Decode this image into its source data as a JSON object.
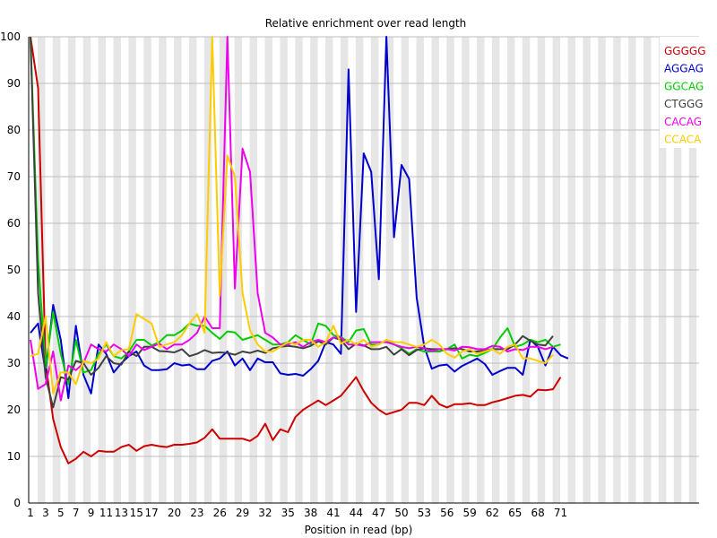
{
  "chart_data": {
    "type": "line",
    "title": "Relative enrichment over read length",
    "xlabel": "Position in read (bp)",
    "ylabel": "",
    "ylim": [
      0,
      100
    ],
    "yticks": [
      0,
      10,
      20,
      30,
      40,
      50,
      60,
      70,
      80,
      90,
      100
    ],
    "xticks": [
      1,
      3,
      5,
      7,
      9,
      11,
      13,
      15,
      17,
      20,
      23,
      26,
      29,
      32,
      35,
      38,
      41,
      44,
      47,
      50,
      53,
      56,
      59,
      62,
      65,
      68,
      71
    ],
    "grid": "horizontal",
    "legend_position": "top-right",
    "series": [
      {
        "name": "GGGGG",
        "color": "#cc0000",
        "values": [
          100,
          89,
          30,
          18,
          12,
          8.5,
          9.5,
          11,
          10,
          11.2,
          11,
          11,
          12,
          12.5,
          11.2,
          12.2,
          12.5,
          12.2,
          12,
          12.5,
          12.5,
          12.7,
          13,
          14,
          15.8,
          13.8,
          13.8,
          13.8,
          13.8,
          13.3,
          14.4,
          17,
          13.5,
          15.8,
          15.2,
          18.5,
          20,
          21,
          22,
          21,
          22,
          23,
          25,
          27,
          24,
          21.5,
          20,
          19,
          19.5,
          20,
          21.5,
          21.5,
          21,
          23,
          21.2,
          20.5,
          21.2,
          21.2,
          21.4,
          21,
          21,
          21.6,
          22,
          22.5,
          23,
          23.2,
          22.8,
          24.3,
          24.2,
          24.4,
          27
        ]
      },
      {
        "name": "AGGAG",
        "color": "#0000cc",
        "values": [
          36.5,
          38.5,
          28,
          42.5,
          35,
          22.5,
          38,
          27.5,
          23.5,
          34,
          32,
          28,
          30,
          31.5,
          32.5,
          29.5,
          28.5,
          28.5,
          28.7,
          30,
          29.5,
          29.7,
          28.7,
          28.7,
          30.5,
          31,
          32.5,
          29.5,
          31,
          28.5,
          31,
          30.2,
          30.2,
          27.8,
          27.5,
          27.7,
          27.3,
          28.7,
          30.5,
          34.5,
          34,
          32,
          93,
          41,
          75,
          71,
          48,
          100,
          57,
          72.5,
          69.5,
          44,
          33.5,
          28.8,
          29.5,
          29.7,
          28.2,
          29.4,
          30.2,
          31,
          29.8,
          27.5,
          28.3,
          29,
          29,
          27.5,
          35,
          33.5,
          29.5,
          33.5,
          31.7,
          31
        ]
      },
      {
        "name": "GGCAG",
        "color": "#00cc00",
        "values": [
          100,
          52,
          29,
          41,
          32,
          25.5,
          35,
          28,
          28.5,
          32,
          34,
          31.5,
          31,
          32.5,
          35,
          35,
          33.8,
          34.5,
          36,
          36,
          37,
          38.5,
          38,
          38,
          36.5,
          35.2,
          36.8,
          36.6,
          35,
          35.5,
          36,
          35,
          34,
          34,
          34.5,
          36,
          35,
          34,
          38.5,
          38,
          36,
          35.6,
          34.5,
          37,
          37.3,
          34,
          34,
          35,
          34,
          33.2,
          32,
          33,
          32.5,
          32.5,
          32.5,
          33,
          34,
          31,
          31.8,
          31.5,
          32.2,
          33,
          35.5,
          37.5,
          33.5,
          34,
          35,
          34.5,
          35,
          33.5,
          34
        ]
      },
      {
        "name": "CTGGG",
        "color": "#404040",
        "values": [
          100,
          45,
          27,
          20.5,
          27,
          26.5,
          30.5,
          30,
          27.5,
          29,
          31.5,
          30,
          29.7,
          32.5,
          31.5,
          33.5,
          33.5,
          32.6,
          32.5,
          32.3,
          33,
          31.5,
          32,
          32.8,
          32.2,
          32.3,
          32.2,
          31.8,
          32.5,
          32.2,
          32.7,
          32.2,
          33.2,
          33.5,
          33.7,
          33.5,
          33.2,
          33.7,
          34.7,
          34,
          35.5,
          35,
          33,
          34.2,
          33.8,
          33,
          33,
          33.5,
          31.8,
          33,
          31.7,
          32.8,
          33.2,
          33,
          33,
          33,
          33.2,
          33,
          32.5,
          32.5,
          32.7,
          33,
          33,
          33,
          34,
          35.8,
          34.8,
          34,
          33.8,
          35.8
        ]
      },
      {
        "name": "CACAG",
        "color": "#ee00ee",
        "values": [
          35,
          24.5,
          25.5,
          32.5,
          22,
          29.5,
          28.5,
          30,
          34,
          33,
          32.5,
          34,
          33,
          31.5,
          34,
          32.8,
          33.5,
          34.2,
          33,
          34,
          34,
          35,
          36.5,
          40,
          37.5,
          37.5,
          100,
          46,
          76,
          71,
          45,
          36.5,
          35.5,
          34,
          34,
          34.5,
          33.5,
          34.5,
          35,
          34.5,
          35.5,
          35.5,
          34,
          34,
          33.7,
          34.5,
          34.5,
          34.5,
          34,
          33.5,
          33.2,
          33.5,
          33.2,
          32.6,
          33,
          33,
          32.7,
          33.5,
          33.4,
          33,
          33,
          33.7,
          33.5,
          32.5,
          33,
          32.8,
          33.5,
          33.5,
          33,
          33.5
        ]
      },
      {
        "name": "CCACA",
        "color": "#ffcc00",
        "values": [
          31.5,
          32,
          40,
          23.5,
          28,
          28,
          25.5,
          30.5,
          30,
          31,
          34.5,
          31.5,
          32.8,
          33,
          40.5,
          39.5,
          38.5,
          33.5,
          34,
          34.5,
          36,
          38.5,
          40.5,
          36.5,
          100,
          44.5,
          74.5,
          70,
          45,
          37,
          34,
          32.5,
          32.5,
          33.5,
          34.5,
          34,
          35,
          35,
          33.5,
          34.5,
          38,
          34.2,
          35,
          34,
          35,
          33.5,
          34,
          35,
          34.5,
          34.5,
          34,
          33.5,
          34,
          35,
          34,
          32,
          31.2,
          32.5,
          33,
          32,
          32.5,
          33,
          32,
          33.5,
          34,
          31,
          31,
          30.5,
          30,
          31.8
        ]
      }
    ]
  }
}
